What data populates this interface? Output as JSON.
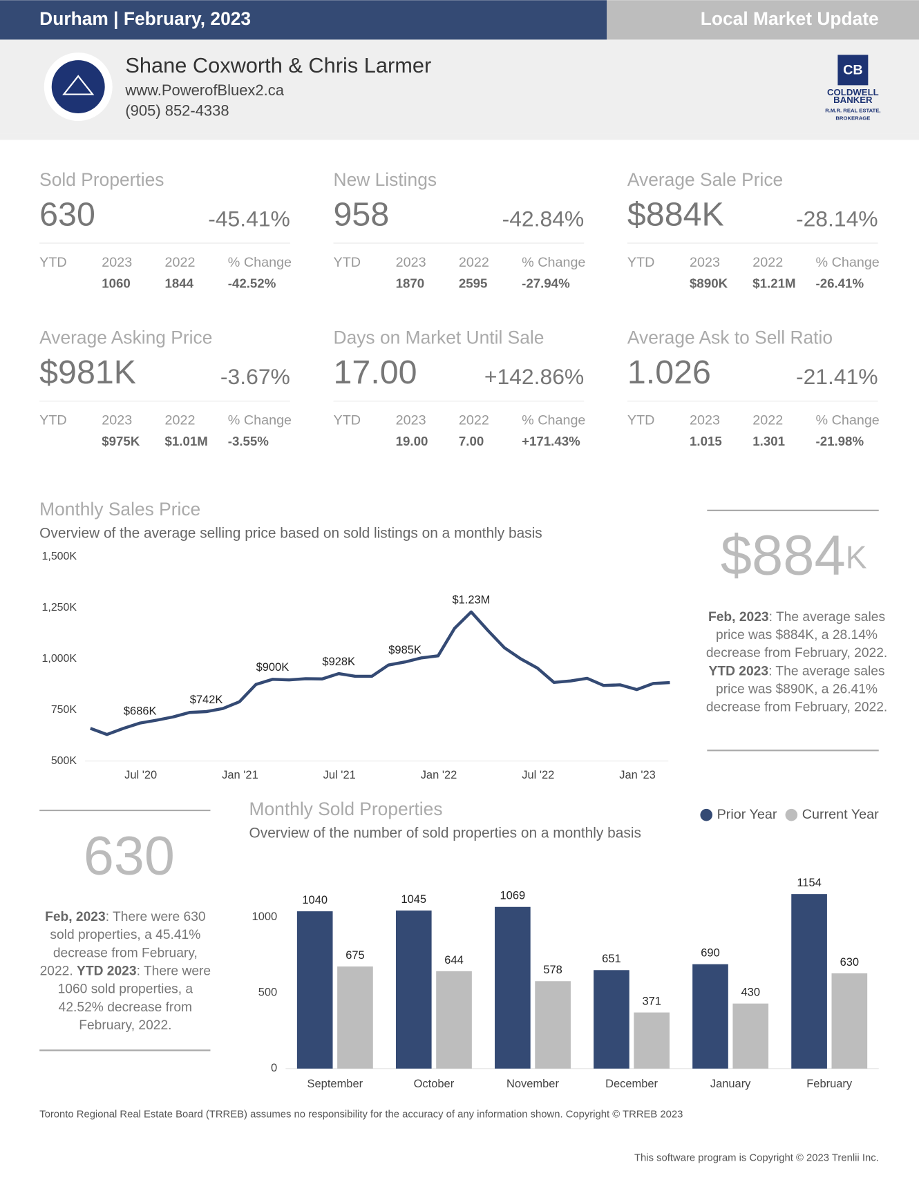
{
  "header": {
    "title": "Durham | February, 2023",
    "badge": "Local Market Update"
  },
  "agent": {
    "name": "Shane Coxworth & Chris Larmer",
    "website": "www.PowerofBluex2.ca",
    "phone": "(905) 852-4338"
  },
  "brand": {
    "mark": "CB",
    "lines": [
      "COLDWELL",
      "BANKER",
      "R.M.R. REAL ESTATE,",
      "BROKERAGE"
    ]
  },
  "stats": [
    {
      "title": "Sold Properties",
      "value": "630",
      "change": "-45.41%",
      "ytd": "YTD",
      "headers": [
        "2023",
        "2022",
        "% Change"
      ],
      "values": [
        "1060",
        "1844",
        "-42.52%"
      ]
    },
    {
      "title": "New Listings",
      "value": "958",
      "change": "-42.84%",
      "ytd": "YTD",
      "headers": [
        "2023",
        "2022",
        "% Change"
      ],
      "values": [
        "1870",
        "2595",
        "-27.94%"
      ]
    },
    {
      "title": "Average Sale Price",
      "value": "$884K",
      "change": "-28.14%",
      "ytd": "YTD",
      "headers": [
        "2023",
        "2022",
        "% Change"
      ],
      "values": [
        "$890K",
        "$1.21M",
        "-26.41%"
      ]
    },
    {
      "title": "Average Asking Price",
      "value": "$981K",
      "change": "-3.67%",
      "ytd": "YTD",
      "headers": [
        "2023",
        "2022",
        "% Change"
      ],
      "values": [
        "$975K",
        "$1.01M",
        "-3.55%"
      ]
    },
    {
      "title": "Days on Market Until Sale",
      "value": "17.00",
      "change": "+142.86%",
      "ytd": "YTD",
      "headers": [
        "2023",
        "2022",
        "% Change"
      ],
      "values": [
        "19.00",
        "7.00",
        "+171.43%"
      ]
    },
    {
      "title": "Average Ask to Sell Ratio",
      "value": "1.026",
      "change": "-21.41%",
      "ytd": "YTD",
      "headers": [
        "2023",
        "2022",
        "% Change"
      ],
      "values": [
        "1.015",
        "1.301",
        "-21.98%"
      ]
    }
  ],
  "chart_data": [
    {
      "type": "line",
      "title": "Monthly Sales Price",
      "subtitle": "Overview of the average selling price based on sold listings on a monthly basis",
      "x": [
        "2020-03",
        "2020-04",
        "2020-05",
        "2020-06",
        "2020-07",
        "2020-08",
        "2020-09",
        "2020-10",
        "2020-11",
        "2020-12",
        "2021-01",
        "2021-02",
        "2021-03",
        "2021-04",
        "2021-05",
        "2021-06",
        "2021-07",
        "2021-08",
        "2021-09",
        "2021-10",
        "2021-11",
        "2021-12",
        "2022-01",
        "2022-02",
        "2022-03",
        "2022-04",
        "2022-05",
        "2022-06",
        "2022-07",
        "2022-08",
        "2022-09",
        "2022-10",
        "2022-11",
        "2022-12",
        "2023-01",
        "2023-02"
      ],
      "series": [
        {
          "color": "#344a74",
          "values": [
            660,
            630,
            660,
            686,
            700,
            716,
            738,
            742,
            757,
            790,
            875,
            900,
            897,
            903,
            902,
            928,
            915,
            915,
            970,
            985,
            1005,
            1015,
            1150,
            1230,
            1140,
            1055,
            1000,
            955,
            885,
            892,
            905,
            870,
            873,
            850,
            880,
            884
          ],
          "value_labels": [
            null,
            null,
            null,
            "$686K",
            null,
            null,
            null,
            "$742K",
            null,
            null,
            null,
            "$900K",
            null,
            null,
            null,
            "$928K",
            null,
            null,
            null,
            "$985K",
            null,
            null,
            null,
            "$1.23M",
            null,
            null,
            null,
            null,
            null,
            null,
            null,
            null,
            null,
            null,
            null,
            null
          ]
        }
      ],
      "ylim": [
        500,
        1500
      ],
      "yticks": [
        {
          "value": 500,
          "label": "500K"
        },
        {
          "value": 750,
          "label": "750K"
        },
        {
          "value": 1000,
          "label": "1,000K"
        },
        {
          "value": 1250,
          "label": "1,250K"
        },
        {
          "value": 1500,
          "label": "1,500K"
        }
      ],
      "xticks": [
        {
          "value": "2020-07",
          "label": "Jul '20"
        },
        {
          "value": "2021-01",
          "label": "Jan '21"
        },
        {
          "value": "2021-07",
          "label": "Jul '21"
        },
        {
          "value": "2022-01",
          "label": "Jan '22"
        },
        {
          "value": "2022-07",
          "label": "Jul '22"
        },
        {
          "value": "2023-01",
          "label": "Jan '23"
        }
      ],
      "highlight": {
        "value": "$884",
        "unit": "K",
        "lines": [
          [
            {
              "bold": "Feb, 2023"
            },
            {
              "text": ": The average sales"
            }
          ],
          [
            {
              "text": "price was $884K, a 28.14%"
            }
          ],
          [
            {
              "text": "decrease from February, 2022."
            }
          ],
          [
            {
              "bold": "YTD 2023"
            },
            {
              "text": ": The average sales"
            }
          ],
          [
            {
              "text": "price was $890K, a 26.41%"
            }
          ],
          [
            {
              "text": "decrease from February, 2022."
            }
          ]
        ]
      }
    },
    {
      "type": "bar",
      "title": "Monthly Sold Properties",
      "subtitle": "Overview of the number of sold properties on a monthly basis",
      "categories": [
        "September",
        "October",
        "November",
        "December",
        "January",
        "February"
      ],
      "series": [
        {
          "name": "Prior Year",
          "color": "#344a74",
          "values": [
            1040,
            1045,
            1069,
            651,
            690,
            1154
          ]
        },
        {
          "name": "Current Year",
          "color": "#bdbdbd",
          "values": [
            675,
            644,
            578,
            371,
            430,
            630
          ]
        }
      ],
      "ylim": [
        0,
        1200
      ],
      "yticks": [
        0,
        500,
        1000
      ],
      "highlight": {
        "value": "630",
        "lines": [
          [
            {
              "bold": "Feb, 2023"
            },
            {
              "text": ": There were 630"
            }
          ],
          [
            {
              "text": "sold properties, a 45.41%"
            }
          ],
          [
            {
              "text": "decrease from February,"
            }
          ],
          [
            {
              "text": "2022. "
            },
            {
              "bold": "YTD 2023"
            },
            {
              "text": ": There were"
            }
          ],
          [
            {
              "text": "1060 sold properties, a"
            }
          ],
          [
            {
              "text": "42.52% decrease from"
            }
          ],
          [
            {
              "text": "February, 2022."
            }
          ]
        ]
      }
    }
  ],
  "footer": {
    "disclaimer": "Toronto Regional Real Estate Board (TRREB) assumes no responsibility for the accuracy of any information shown. Copyright © TRREB 2023",
    "software": "This software program is Copyright © 2023 Trenlii Inc."
  }
}
